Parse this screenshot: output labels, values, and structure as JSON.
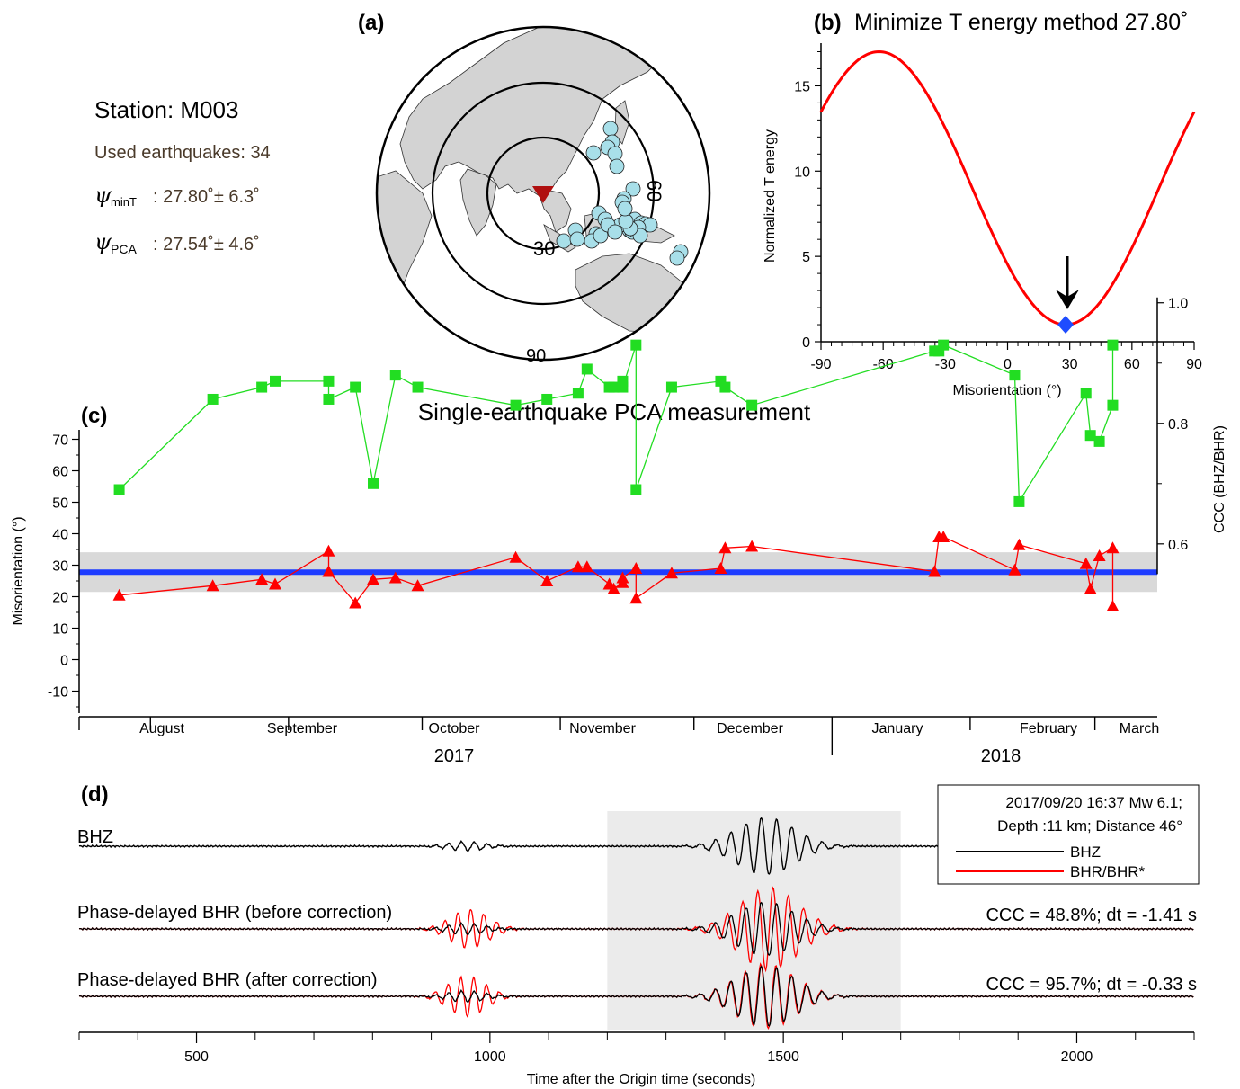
{
  "panel_a": {
    "label": "(a)",
    "station_label": "Station:  M003",
    "used_label": "Used earthquakes: 34",
    "psi_min_sub": "minT",
    "psi_min_val": ": 27.80˚± 6.3˚",
    "psi_pca_sub": "PCA",
    "psi_pca_val": ": 27.54˚± 4.6˚",
    "ring_labels": [
      "30",
      "60",
      "90"
    ],
    "colors": {
      "station": "#b01010",
      "event": "#a8dfe9",
      "land": "#d3d3d3"
    },
    "event_count_shown": 34
  },
  "panel_b": {
    "label": "(b)",
    "title": "Minimize T energy method 27.80˚",
    "ylabel": "Normalized T energy",
    "xlabel": "Misorientation (°)",
    "xticks": [
      "-90",
      "-60",
      "-30",
      "0",
      "30",
      "60",
      "90"
    ],
    "yticks": [
      "0",
      "5",
      "10",
      "15"
    ],
    "colors": {
      "curve": "#ff0000",
      "marker": "#1e4cff"
    }
  },
  "panel_c": {
    "label": "(c)",
    "title": "Single-earthquake PCA measurement",
    "ylabel": "Misorientation  (°)",
    "y2label": "CCC (BHZ/BHR)",
    "yticks": [
      "70",
      "60",
      "50",
      "40",
      "30",
      "20",
      "10",
      "0",
      "-10"
    ],
    "y2ticks": [
      "1.0",
      "0.8",
      "0.6"
    ],
    "months": [
      "August",
      "September",
      "October",
      "November",
      "December",
      "January",
      "February",
      "March"
    ],
    "years": [
      "2017",
      "2018"
    ],
    "colors": {
      "misorientation": "#ff0000",
      "ccc": "#22dd22",
      "mean": "#1e3cff",
      "band": "#d9d9d9"
    }
  },
  "panel_d": {
    "label": "(d)",
    "trace1": "BHZ",
    "trace2": "Phase-delayed BHR (before correction)",
    "trace3": "Phase-delayed BHR (after correction)",
    "ccc_before": "CCC = 48.8%;   dt = -1.41 s",
    "ccc_after": "CCC = 95.7%;   dt = -0.33 s",
    "legend_line1": "2017/09/20 16:37 Mw 6.1;",
    "legend_line2": "Depth :11 km; Distance 46°",
    "legend_bhz": "BHZ",
    "legend_bhr": "BHR/BHR*",
    "xlabel": "Time after the Origin time (seconds)",
    "xticks": [
      "500",
      "1000",
      "1500",
      "2000"
    ],
    "window_s": [
      1200,
      1700
    ],
    "colors": {
      "bhz": "#000000",
      "bhr": "#ff0000",
      "window": "#ebebeb"
    }
  },
  "chart_data": [
    {
      "type": "line",
      "panel": "b",
      "title": "Minimize T energy method 27.80˚",
      "xlabel": "Misorientation (°)",
      "ylabel": "Normalized T energy",
      "xlim": [
        -90,
        90
      ],
      "ylim": [
        0,
        17.5
      ],
      "series": [
        {
          "x": [
            -90,
            -75,
            -62,
            -45,
            -30,
            -15,
            0,
            15,
            28,
            45,
            60,
            75,
            90
          ],
          "y": [
            13.5,
            16.3,
            17.0,
            15.8,
            13.5,
            9.9,
            6.5,
            2.9,
            1.0,
            2.1,
            5.4,
            9.5,
            13.5
          ]
        }
      ],
      "marker": {
        "x": 28,
        "y": 1.0
      }
    },
    {
      "type": "line",
      "panel": "c",
      "title": "Single-earthquake PCA measurement",
      "ylabel": "Misorientation  (°)",
      "y2label": "CCC (BHZ/BHR)",
      "ylim": [
        -17,
        73
      ],
      "y2lim": [
        0.55,
        1.02
      ],
      "mean": 27.8,
      "band": [
        21.5,
        34.1
      ],
      "x_dates": [
        "2017-07-25",
        "2017-08-15",
        "2017-08-26",
        "2017-08-29",
        "2017-09-10",
        "2017-09-10",
        "2017-09-16",
        "2017-09-20",
        "2017-09-25",
        "2017-09-30",
        "2017-10-22",
        "2017-10-29",
        "2017-11-05",
        "2017-11-07",
        "2017-11-12",
        "2017-11-13",
        "2017-11-15",
        "2017-11-15",
        "2017-11-18",
        "2017-11-18",
        "2017-11-26",
        "2017-12-07",
        "2017-12-08",
        "2017-12-14",
        "2018-01-24",
        "2018-01-25",
        "2018-01-26",
        "2018-02-11",
        "2018-02-12",
        "2018-02-27",
        "2018-02-28",
        "2018-03-02",
        "2018-03-05",
        "2018-03-05"
      ],
      "series": [
        {
          "name": "Misorientation",
          "y": [
            20.5,
            23.5,
            25.5,
            24,
            34.5,
            28,
            18,
            25.5,
            26,
            23.5,
            32.5,
            25,
            29.5,
            29.5,
            24,
            22.5,
            24.5,
            26,
            29,
            19.5,
            27.5,
            29,
            35.5,
            36,
            28,
            39,
            39,
            28.5,
            36.5,
            30.5,
            22.5,
            33,
            35.5,
            17
          ]
        },
        {
          "name": "CCC",
          "y": [
            0.69,
            0.84,
            0.86,
            0.87,
            0.87,
            0.84,
            0.86,
            0.7,
            0.88,
            0.86,
            0.83,
            0.84,
            0.85,
            0.89,
            0.86,
            0.86,
            0.87,
            0.86,
            0.93,
            0.69,
            0.86,
            0.87,
            0.86,
            0.83,
            0.92,
            0.92,
            0.93,
            0.88,
            0.67,
            0.85,
            0.78,
            0.77,
            0.83,
            0.93
          ]
        }
      ]
    },
    {
      "type": "line",
      "panel": "d",
      "xlabel": "Time after the Origin time (seconds)",
      "xlim": [
        300,
        2200
      ],
      "series": [
        {
          "name": "BHZ"
        },
        {
          "name": "BHR/BHR*"
        }
      ]
    }
  ]
}
